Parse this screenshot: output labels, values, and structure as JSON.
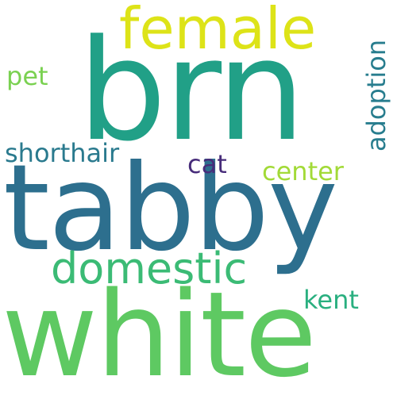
{
  "words": [
    {
      "text": "brn",
      "color": "#21a087"
    },
    {
      "text": "tabby",
      "color": "#2d6f8e"
    },
    {
      "text": "white",
      "color": "#5ec962"
    },
    {
      "text": "female",
      "color": "#dde318"
    },
    {
      "text": "domestic",
      "color": "#3bbb75"
    },
    {
      "text": "shorthair",
      "color": "#2a7a8e"
    },
    {
      "text": "pet",
      "color": "#7ad151"
    },
    {
      "text": "center",
      "color": "#a2da37"
    },
    {
      "text": "cat",
      "color": "#472c7a"
    },
    {
      "text": "kent",
      "color": "#29af7f"
    },
    {
      "text": "adoption",
      "color": "#287d8e",
      "orientation": "vertical"
    }
  ]
}
